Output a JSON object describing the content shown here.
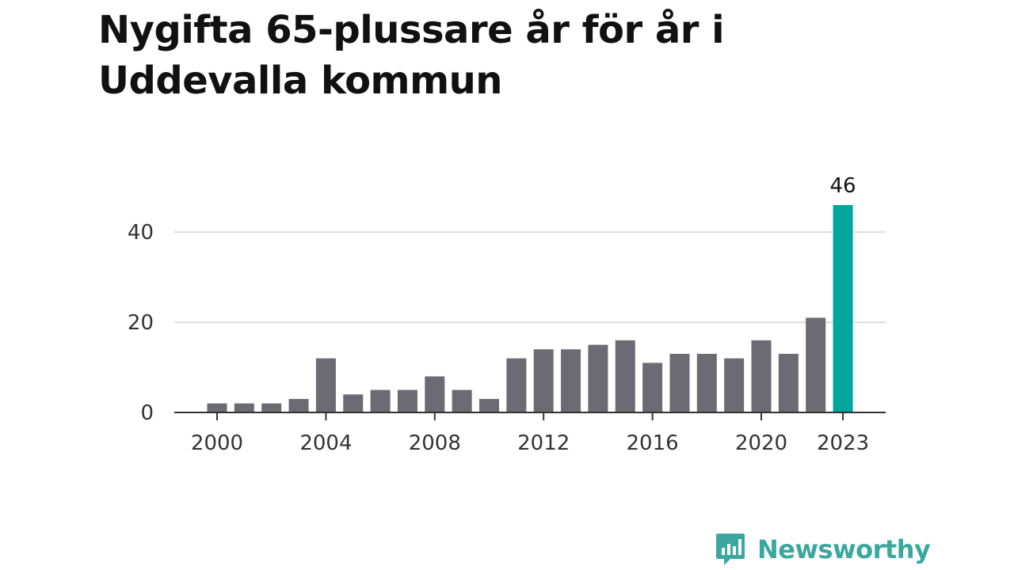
{
  "chart_data": {
    "type": "bar",
    "title": "Nygifta 65-plussare år för år i Uddevalla kommun",
    "xlabel": "",
    "ylabel": "",
    "categories": [
      "2000",
      "2001",
      "2002",
      "2003",
      "2004",
      "2005",
      "2006",
      "2007",
      "2008",
      "2009",
      "2010",
      "2011",
      "2012",
      "2013",
      "2014",
      "2015",
      "2016",
      "2017",
      "2018",
      "2019",
      "2020",
      "2021",
      "2022",
      "2023"
    ],
    "values": [
      2,
      2,
      2,
      3,
      12,
      4,
      5,
      5,
      8,
      5,
      3,
      12,
      14,
      14,
      15,
      16,
      11,
      13,
      13,
      12,
      16,
      13,
      21,
      46
    ],
    "ylim": [
      0,
      46
    ],
    "yticks": [
      0,
      20,
      40
    ],
    "xtick_labels": [
      "2000",
      "2004",
      "2008",
      "2012",
      "2016",
      "2020",
      "2023"
    ],
    "highlight": {
      "category": "2023",
      "label": "46"
    },
    "grid": true,
    "colors": {
      "bar": "#6c6b73",
      "highlight": "#00a69c",
      "grid": "#dddddd",
      "axis": "#333333"
    }
  },
  "brand": {
    "name": "Newsworthy",
    "icon": "newsworthy-logo-icon",
    "color": "#3aa89e"
  }
}
